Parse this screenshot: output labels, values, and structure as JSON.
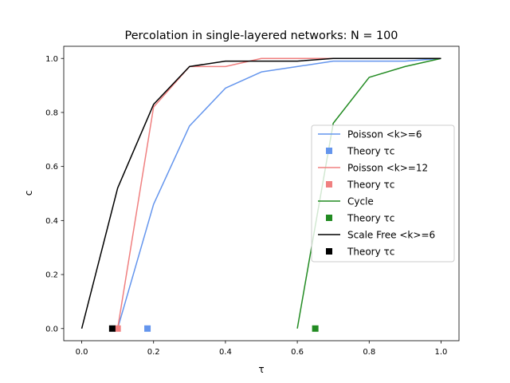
{
  "chart_data": {
    "type": "line",
    "title": "Percolation in single-layered networks: N = 100",
    "xlabel": "τ",
    "ylabel": "c",
    "xlim": [
      -0.05,
      1.05
    ],
    "ylim": [
      -0.045,
      1.045
    ],
    "xticks": [
      "0.0",
      "0.2",
      "0.4",
      "0.6",
      "0.8",
      "1.0"
    ],
    "yticks": [
      "0.0",
      "0.2",
      "0.4",
      "0.6",
      "0.8",
      "1.0"
    ],
    "grid": false,
    "legend_position": "center-right",
    "series": [
      {
        "name": "Poisson <k>=6",
        "color": "#6495ED",
        "x": [
          0.1,
          0.2,
          0.3,
          0.4,
          0.5,
          0.6,
          0.7,
          0.8,
          0.9,
          1.0
        ],
        "y": [
          0.0,
          0.46,
          0.75,
          0.89,
          0.95,
          0.97,
          0.99,
          0.99,
          0.99,
          1.0
        ]
      },
      {
        "name": "Poisson <k>=12",
        "color": "#F08080",
        "x": [
          0.1,
          0.2,
          0.3,
          0.4,
          0.5,
          0.6,
          0.7,
          0.8,
          0.9,
          1.0
        ],
        "y": [
          0.0,
          0.82,
          0.97,
          0.97,
          1.0,
          1.0,
          1.0,
          1.0,
          1.0,
          1.0
        ]
      },
      {
        "name": "Cycle",
        "color": "#228B22",
        "x": [
          0.6,
          0.7,
          0.8,
          0.9,
          1.0
        ],
        "y": [
          0.0,
          0.76,
          0.93,
          0.97,
          1.0
        ]
      },
      {
        "name": "Scale Free <k>=6",
        "color": "#000000",
        "x": [
          0.0,
          0.1,
          0.2,
          0.3,
          0.4,
          0.5,
          0.6,
          0.7,
          0.8,
          0.9,
          1.0
        ],
        "y": [
          0.0,
          0.52,
          0.83,
          0.97,
          0.99,
          0.99,
          0.99,
          1.0,
          1.0,
          1.0,
          1.0
        ]
      }
    ],
    "theory_points": [
      {
        "name": "Theory τc",
        "color": "#6495ED",
        "x": 0.183,
        "y": 0.0
      },
      {
        "name": "Theory τc",
        "color": "#F08080",
        "x": 0.1,
        "y": 0.0
      },
      {
        "name": "Theory τc",
        "color": "#228B22",
        "x": 0.65,
        "y": 0.0
      },
      {
        "name": "Theory τc",
        "color": "#000000",
        "x": 0.085,
        "y": 0.0
      }
    ],
    "legend": [
      {
        "label": "Poisson <k>=6",
        "kind": "line",
        "color": "#6495ED"
      },
      {
        "label": "Theory τc",
        "kind": "marker",
        "color": "#6495ED"
      },
      {
        "label": "Poisson <k>=12",
        "kind": "line",
        "color": "#F08080"
      },
      {
        "label": "Theory τc",
        "kind": "marker",
        "color": "#F08080"
      },
      {
        "label": "Cycle",
        "kind": "line",
        "color": "#228B22"
      },
      {
        "label": "Theory τc",
        "kind": "marker",
        "color": "#228B22"
      },
      {
        "label": "Scale Free <k>=6",
        "kind": "line",
        "color": "#000000"
      },
      {
        "label": "Theory τc",
        "kind": "marker",
        "color": "#000000"
      }
    ]
  }
}
